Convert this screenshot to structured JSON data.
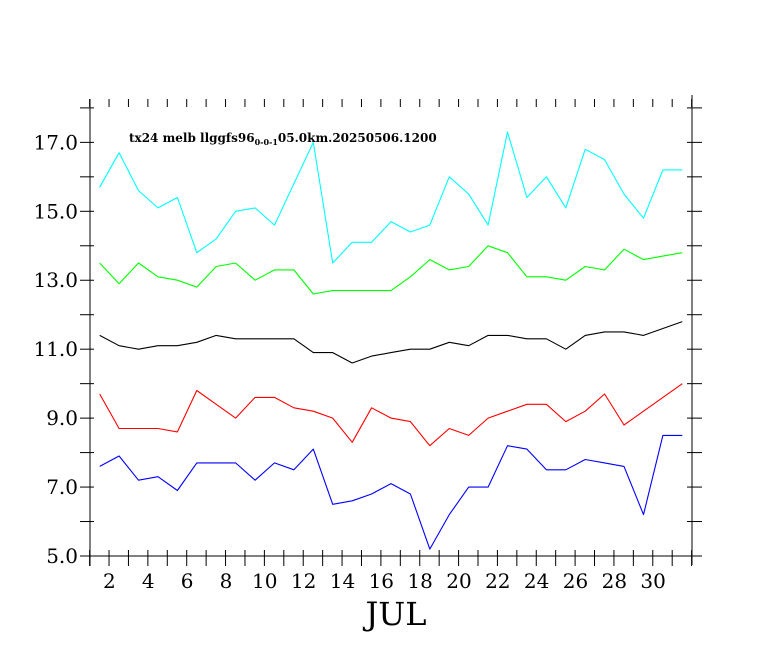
{
  "chart_data": {
    "type": "line",
    "title": "tx24 melb llggfs96",
    "title_subscript": "0-0-1",
    "title_suffix": "05.0km.20250506.1200",
    "xlabel": "JUL",
    "ylabel": "",
    "xlim": [
      1,
      32
    ],
    "ylim": [
      5,
      18.2
    ],
    "yticks": [
      5.0,
      7.0,
      9.0,
      11.0,
      13.0,
      15.0,
      17.0
    ],
    "ytick_labels": [
      "5.0",
      "7.0",
      "9.0",
      "11.0",
      "13.0",
      "15.0",
      "17.0"
    ],
    "xticks": [
      2,
      4,
      6,
      8,
      10,
      12,
      14,
      16,
      18,
      20,
      22,
      24,
      26,
      28,
      30
    ],
    "xtick_labels": [
      "2",
      "4",
      "6",
      "8",
      "10",
      "12",
      "14",
      "16",
      "18",
      "20",
      "22",
      "24",
      "26",
      "28",
      "30"
    ],
    "grid": false,
    "x": [
      1.5,
      2.5,
      3.5,
      4.5,
      5.5,
      6.5,
      7.5,
      8.5,
      9.5,
      10.5,
      11.5,
      12.5,
      13.5,
      14.5,
      15.5,
      16.5,
      17.5,
      18.5,
      19.5,
      20.5,
      21.5,
      22.5,
      23.5,
      24.5,
      25.5,
      26.5,
      27.5,
      28.5,
      29.5,
      30.5,
      31.5
    ],
    "series": [
      {
        "color": "#00ffff",
        "values": [
          15.7,
          16.7,
          15.6,
          15.1,
          15.4,
          13.8,
          14.2,
          15.0,
          15.1,
          14.6,
          15.8,
          17.0,
          13.5,
          14.1,
          14.1,
          14.7,
          14.4,
          14.6,
          16.0,
          15.5,
          14.6,
          17.3,
          15.4,
          16.0,
          15.1,
          16.8,
          16.5,
          15.5,
          14.8,
          16.2,
          16.2
        ]
      },
      {
        "color": "#00ff00",
        "values": [
          13.5,
          12.9,
          13.5,
          13.1,
          13.0,
          12.8,
          13.4,
          13.5,
          13.0,
          13.3,
          13.3,
          12.6,
          12.7,
          12.7,
          12.7,
          12.7,
          13.1,
          13.6,
          13.3,
          13.4,
          14.0,
          13.8,
          13.1,
          13.1,
          13.0,
          13.4,
          13.3,
          13.9,
          13.6,
          13.7,
          13.8
        ]
      },
      {
        "color": "#000000",
        "values": [
          11.4,
          11.1,
          11.0,
          11.1,
          11.1,
          11.2,
          11.4,
          11.3,
          11.3,
          11.3,
          11.3,
          10.9,
          10.9,
          10.6,
          10.8,
          10.9,
          11.0,
          11.0,
          11.2,
          11.1,
          11.4,
          11.4,
          11.3,
          11.3,
          11.0,
          11.4,
          11.5,
          11.5,
          11.4,
          11.6,
          11.8
        ]
      },
      {
        "color": "#ff0000",
        "values": [
          9.7,
          8.7,
          8.7,
          8.7,
          8.6,
          9.8,
          9.4,
          9.0,
          9.6,
          9.6,
          9.3,
          9.2,
          9.0,
          8.3,
          9.3,
          9.0,
          8.9,
          8.2,
          8.7,
          8.5,
          9.0,
          9.2,
          9.4,
          9.4,
          8.9,
          9.2,
          9.7,
          8.8,
          9.2,
          9.6,
          10.0
        ]
      },
      {
        "color": "#0000ff",
        "values": [
          7.6,
          7.9,
          7.2,
          7.3,
          6.9,
          7.7,
          7.7,
          7.7,
          7.2,
          7.7,
          7.5,
          8.1,
          6.5,
          6.6,
          6.8,
          7.1,
          6.8,
          5.2,
          6.2,
          7.0,
          7.0,
          8.2,
          8.1,
          7.5,
          7.5,
          7.8,
          7.7,
          7.6,
          6.2,
          8.5,
          8.5
        ]
      }
    ]
  }
}
